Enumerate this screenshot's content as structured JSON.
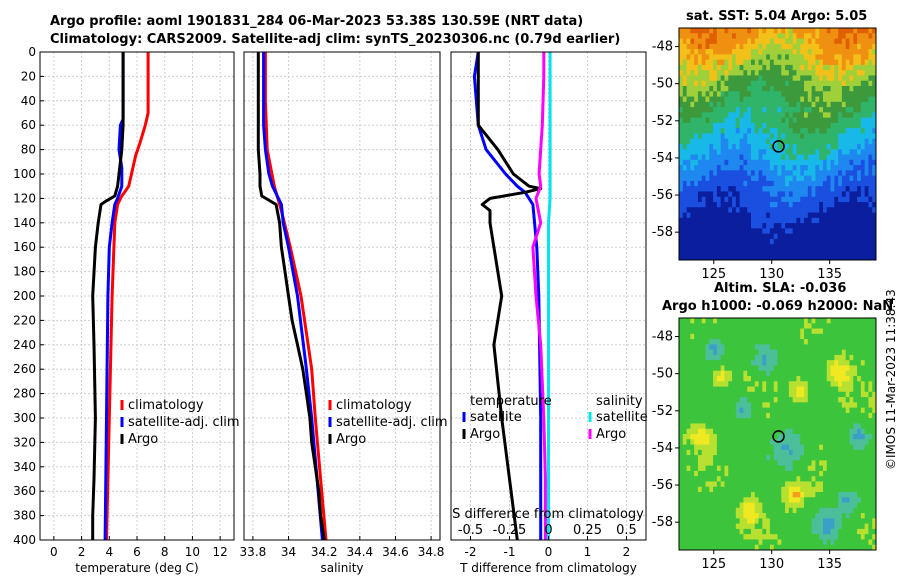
{
  "titles": {
    "line1": "Argo profile: aoml 1901831_284 06-Mar-2023 53.38S 130.59E (NRT data)",
    "line2": "Climatology: CARS2009. Satellite-adj clim: synTS_20230306.nc (0.79d earlier)",
    "sst": "sat. SST: 5.04 Argo: 5.05",
    "sla1": "Altim. SLA: -0.036",
    "sla2": "Argo h1000: -0.069 h2000: NaN"
  },
  "watermark": "©IMOS 11-Mar-2023 11:38:43",
  "colors": {
    "red": "#ff0000",
    "blue": "#0000ff",
    "black": "#000000",
    "cyan": "#00e5ee",
    "magenta": "#ff00ff"
  },
  "chart_data": [
    {
      "type": "line",
      "name": "temperature",
      "xlabel": "temperature (deg C)",
      "ylabel": "",
      "xlim": [
        -1,
        13
      ],
      "ylim": [
        400,
        0
      ],
      "xticks": [
        "0",
        "2",
        "4",
        "6",
        "8",
        "10",
        "12"
      ],
      "yticks": [
        "0",
        "20",
        "40",
        "60",
        "80",
        "100",
        "120",
        "140",
        "160",
        "180",
        "200",
        "220",
        "240",
        "260",
        "280",
        "300",
        "320",
        "340",
        "360",
        "380",
        "400"
      ],
      "legend": [
        "climatology",
        "satellite-adj. clim",
        "Argo"
      ],
      "series": [
        {
          "name": "climatology",
          "color": "red",
          "depth": [
            0,
            20,
            50,
            60,
            75,
            85,
            100,
            110,
            115,
            118,
            125,
            140,
            200,
            300,
            400
          ],
          "values": [
            6.8,
            6.8,
            6.8,
            6.6,
            6.2,
            5.9,
            5.6,
            5.4,
            5.1,
            4.9,
            4.6,
            4.4,
            4.2,
            4.0,
            3.8
          ]
        },
        {
          "name": "satellite-adj. clim",
          "color": "blue",
          "depth": [
            0,
            40,
            55,
            60,
            80,
            95,
            110,
            120,
            125,
            140,
            160,
            200,
            300,
            400
          ],
          "values": [
            5.0,
            5.0,
            5.0,
            4.8,
            4.7,
            4.9,
            4.9,
            4.6,
            4.4,
            4.2,
            4.0,
            3.9,
            3.8,
            3.7
          ]
        },
        {
          "name": "Argo",
          "color": "black",
          "depth": [
            0,
            60,
            80,
            100,
            110,
            118,
            122,
            125,
            140,
            160,
            200,
            240,
            300,
            350,
            380,
            400
          ],
          "values": [
            5.0,
            5.0,
            4.9,
            4.7,
            4.6,
            4.4,
            3.8,
            3.4,
            3.2,
            3.0,
            2.8,
            2.9,
            3.0,
            2.9,
            2.8,
            2.8
          ]
        }
      ]
    },
    {
      "type": "line",
      "name": "salinity",
      "xlabel": "salinity",
      "ylabel": "",
      "xlim": [
        33.75,
        34.85
      ],
      "ylim": [
        400,
        0
      ],
      "xticks": [
        "33.8",
        "34",
        "34.2",
        "34.4",
        "34.6",
        "34.8"
      ],
      "legend": [
        "climatology",
        "satellite-adj. clim",
        "Argo"
      ],
      "series": [
        {
          "name": "climatology",
          "color": "red",
          "depth": [
            0,
            40,
            80,
            110,
            130,
            160,
            200,
            260,
            300,
            350,
            400
          ],
          "values": [
            33.87,
            33.87,
            33.88,
            33.92,
            33.96,
            34.01,
            34.07,
            34.13,
            34.15,
            34.18,
            34.21
          ]
        },
        {
          "name": "satellite-adj. clim",
          "color": "blue",
          "depth": [
            0,
            40,
            60,
            80,
            100,
            110,
            125,
            140,
            160,
            200,
            260,
            300,
            400
          ],
          "values": [
            33.86,
            33.86,
            33.86,
            33.87,
            33.89,
            33.91,
            33.96,
            33.97,
            34.0,
            34.05,
            34.1,
            34.13,
            34.19
          ]
        },
        {
          "name": "Argo",
          "color": "black",
          "depth": [
            0,
            60,
            80,
            100,
            110,
            118,
            125,
            140,
            160,
            180,
            200,
            220,
            240,
            260,
            280,
            300,
            320,
            340,
            360,
            380,
            400
          ],
          "values": [
            33.83,
            33.83,
            33.83,
            33.84,
            33.84,
            33.85,
            33.93,
            33.95,
            33.96,
            33.98,
            34.0,
            34.02,
            34.05,
            34.08,
            34.1,
            34.12,
            34.13,
            34.15,
            34.17,
            34.18,
            34.2
          ]
        }
      ]
    },
    {
      "type": "line",
      "name": "difference from climatology",
      "xlabel": "T difference from climatology",
      "x2label": "S difference from climatology",
      "xlim": [
        -2.5,
        2.5
      ],
      "ylim": [
        400,
        0
      ],
      "xticks": [
        "-2",
        "-1",
        "0",
        "1",
        "2"
      ],
      "x2ticks": [
        "-0.5",
        "-0.25",
        "0",
        "0.25",
        "0.5"
      ],
      "legend_temperature_title": "temperature",
      "legend_salinity_title": "salinity",
      "legend_temperature": [
        "satellite",
        "Argo"
      ],
      "legend_salinity": [
        "satellite",
        "Argo"
      ],
      "series": [
        {
          "name": "T satellite",
          "color": "blue",
          "depth": [
            0,
            20,
            60,
            80,
            100,
            110,
            115,
            125,
            160,
            200,
            300,
            400
          ],
          "values": [
            -1.8,
            -1.9,
            -1.8,
            -1.6,
            -1.1,
            -0.8,
            -0.6,
            -0.4,
            -0.3,
            -0.25,
            -0.2,
            -0.2
          ]
        },
        {
          "name": "T Argo",
          "color": "black",
          "depth": [
            0,
            20,
            40,
            60,
            80,
            100,
            110,
            112,
            115,
            120,
            125,
            130,
            140,
            160,
            200,
            240,
            300,
            350,
            400
          ],
          "values": [
            -1.8,
            -1.8,
            -1.8,
            -1.8,
            -1.3,
            -0.9,
            -0.5,
            -0.2,
            -0.6,
            -1.5,
            -1.7,
            -1.5,
            -1.5,
            -1.4,
            -1.2,
            -1.4,
            -1.2,
            -1.0,
            -0.8
          ]
        },
        {
          "name": "S satellite",
          "color": "cyan",
          "depth": [
            0,
            20,
            60,
            100,
            120,
            140,
            200,
            300,
            400
          ],
          "values": [
            0.01,
            0.01,
            0.01,
            0.01,
            0.01,
            0.0,
            0.0,
            0.0,
            0.0
          ]
        },
        {
          "name": "S Argo",
          "color": "magenta",
          "depth": [
            0,
            20,
            60,
            80,
            100,
            110,
            120,
            140,
            160,
            200,
            240,
            300,
            350,
            400
          ],
          "values": [
            -0.03,
            -0.03,
            -0.04,
            -0.05,
            -0.06,
            -0.05,
            -0.08,
            -0.05,
            -0.1,
            -0.08,
            -0.05,
            -0.03,
            -0.02,
            -0.02
          ]
        }
      ]
    },
    {
      "type": "heatmap",
      "name": "satellite SST map",
      "xlim": [
        122,
        139
      ],
      "ylim": [
        -59.5,
        -47
      ],
      "xticks": [
        "125",
        "130",
        "135"
      ],
      "yticks": [
        "-48",
        "-50",
        "-52",
        "-54",
        "-56",
        "-58"
      ],
      "marker": {
        "lon": 130.59,
        "lat": -53.38
      }
    },
    {
      "type": "heatmap",
      "name": "altimetry SLA map",
      "xlim": [
        122,
        139
      ],
      "ylim": [
        -59.5,
        -47
      ],
      "xticks": [
        "125",
        "130",
        "135"
      ],
      "yticks": [
        "-48",
        "-50",
        "-52",
        "-54",
        "-56",
        "-58"
      ],
      "marker": {
        "lon": 130.59,
        "lat": -53.38
      }
    }
  ]
}
